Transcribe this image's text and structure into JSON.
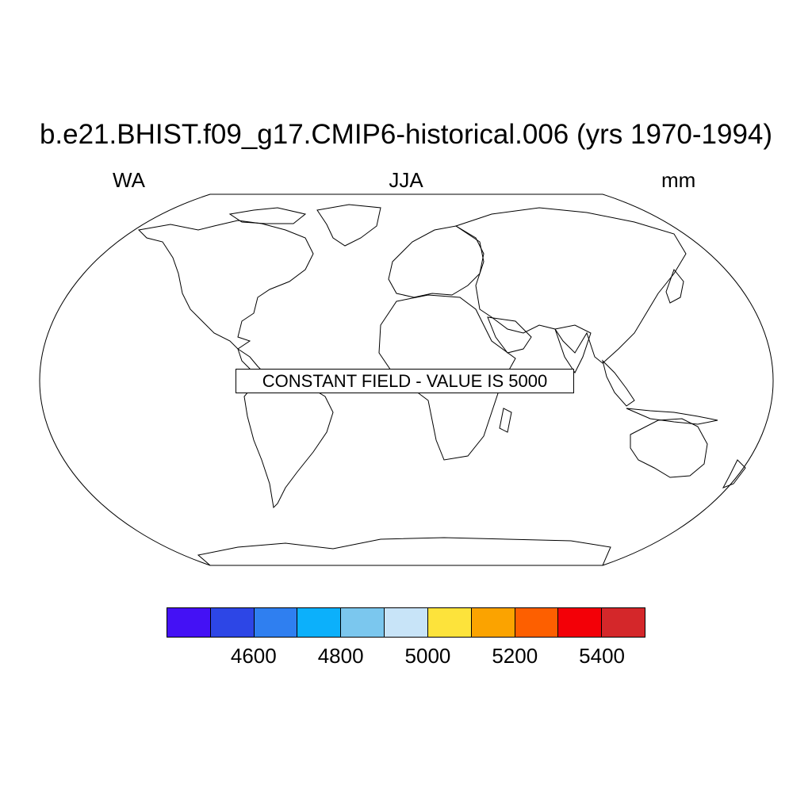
{
  "header": {
    "title": "b.e21.BHIST.f09_g17.CMIP6-historical.006 (yrs 1970-1994)",
    "left_string": "WA",
    "center_string": "JJA",
    "right_string": "mm"
  },
  "map": {
    "projection": "robinson",
    "message": "CONSTANT FIELD - VALUE IS 5000"
  },
  "colorbar": {
    "colors": [
      "#4411f5",
      "#2d46e6",
      "#2f7ff0",
      "#0cb0fb",
      "#7bc7ee",
      "#c8e4f8",
      "#fde33b",
      "#fba300",
      "#fd5f00",
      "#f30007",
      "#d4272a"
    ],
    "tick_labels": [
      "4600",
      "4800",
      "5000",
      "5200",
      "5400"
    ]
  }
}
